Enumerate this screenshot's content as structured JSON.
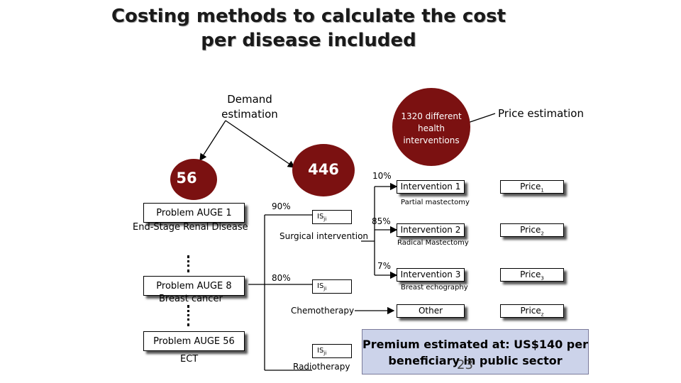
{
  "title": "Costing methods to calculate the cost  per disease included",
  "demand_estimation": "Demand estimation",
  "price_estimation": "Price estimation",
  "interventions_circle": "1320 different health interventions",
  "count_left": "56",
  "count_right": "446",
  "problems": [
    {
      "label": "Problem AUGE 1",
      "desc": "End-Stage Renal Disease"
    },
    {
      "label": "Problem AUGE 8",
      "desc": "Breast cancer"
    },
    {
      "label": "Problem AUGE 56",
      "desc": "ECT"
    }
  ],
  "percentages": {
    "p90": "90%",
    "p80": "80%",
    "p10": "10%",
    "p85": "85%",
    "p7": "7%"
  },
  "is_labels": [
    {
      "main": "IS",
      "sub": "ji"
    },
    {
      "main": "IS",
      "sub": "ji"
    },
    {
      "main": "IS",
      "sub": "ji"
    }
  ],
  "procedures": [
    "Surgical intervention",
    "Chemotherapy",
    "Radiotherapy"
  ],
  "interventions": [
    {
      "label": "Intervention 1",
      "desc": "Partial mastectomy"
    },
    {
      "label": "Intervention 2",
      "desc": "Radical Mastectomy"
    },
    {
      "label": "Intervention 3",
      "desc": "Breast echography"
    },
    {
      "label": "Other",
      "desc": ""
    }
  ],
  "prices": [
    {
      "main": "Price",
      "sub": "1"
    },
    {
      "main": "Price",
      "sub": "2"
    },
    {
      "main": "Price",
      "sub": "3"
    },
    {
      "main": "Price",
      "sub": "z"
    }
  ],
  "premium": "Premium estimated at:  US$140 per beneficiary  in public sector",
  "page_number": "23"
}
